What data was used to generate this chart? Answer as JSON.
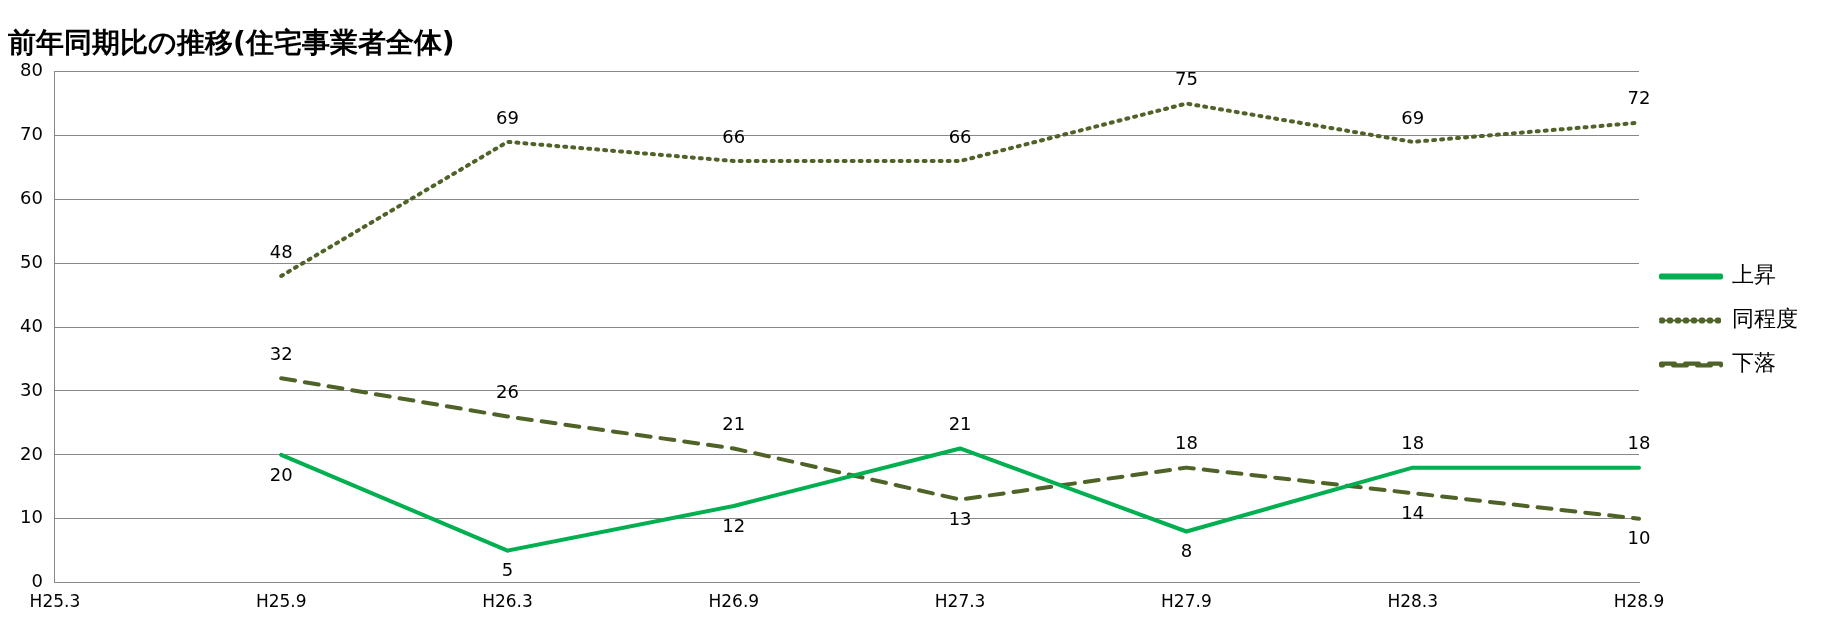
{
  "chart_data": {
    "type": "line",
    "title": "前年同期比の推移(住宅事業者全体)",
    "categories": [
      "H25.3",
      "H25.9",
      "H26.3",
      "H26.9",
      "H27.3",
      "H27.9",
      "H28.3",
      "H28.9"
    ],
    "series": [
      {
        "name": "上昇",
        "color": "#00b050",
        "line_style": "solid",
        "values": [
          null,
          20,
          5,
          12,
          21,
          8,
          18,
          18
        ]
      },
      {
        "name": "同程度",
        "color": "#4f6228",
        "line_style": "dotted",
        "values": [
          null,
          48,
          69,
          66,
          66,
          75,
          69,
          72
        ]
      },
      {
        "name": "下落",
        "color": "#4f6228",
        "line_style": "dashed",
        "values": [
          null,
          32,
          26,
          21,
          13,
          18,
          14,
          10
        ]
      }
    ],
    "ylim": [
      0,
      80
    ],
    "yticks": [
      0,
      10,
      20,
      30,
      40,
      50,
      60,
      70,
      80
    ],
    "grid": "y",
    "legend": "right",
    "marker": "none",
    "data_labels": true
  }
}
